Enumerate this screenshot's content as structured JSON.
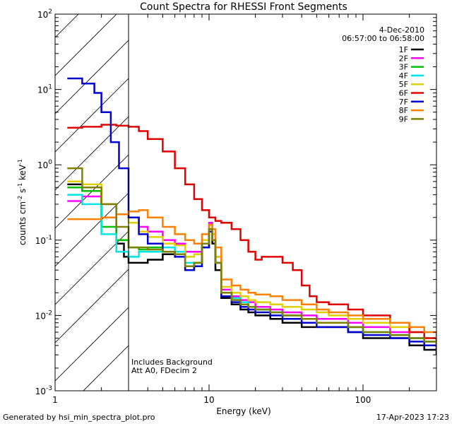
{
  "chart_data": {
    "type": "line",
    "title": "Count Spectra for RHESSI Front Segments",
    "xlabel": "Energy (keV)",
    "ylabel": "counts cm",
    "ylabel_parts": [
      "counts cm",
      "-2",
      " s",
      "-1",
      " keV",
      "-1"
    ],
    "xscale": "log",
    "yscale": "log",
    "xlim": [
      1,
      300
    ],
    "ylim": [
      0.001,
      100
    ],
    "x_ticks": [
      {
        "value": 1,
        "label": "1"
      },
      {
        "value": 10,
        "label": "10"
      },
      {
        "value": 100,
        "label": "100"
      }
    ],
    "y_ticks": [
      {
        "value": 0.001,
        "base": "10",
        "exp": "-3"
      },
      {
        "value": 0.01,
        "base": "10",
        "exp": "-2"
      },
      {
        "value": 0.1,
        "base": "10",
        "exp": "-1"
      },
      {
        "value": 1,
        "base": "10",
        "exp": "0"
      },
      {
        "value": 10,
        "base": "10",
        "exp": "1"
      },
      {
        "value": 100,
        "base": "10",
        "exp": "2"
      }
    ],
    "date": "4-Dec-2010",
    "time_range": "06:57:00 to 06:58:00",
    "hatched_region_x": [
      1,
      3
    ],
    "annotations": [
      "Includes Background",
      "Att A0, FDecim 2"
    ],
    "footer_left": "Generated by hsi_min_spectra_plot.pro",
    "footer_right": "17-Apr-2023 17:23",
    "series": [
      {
        "name": "1F",
        "color": "#000000",
        "points": [
          [
            1.2,
            0.55
          ],
          [
            1.5,
            0.45
          ],
          [
            2,
            0.2
          ],
          [
            2.5,
            0.09
          ],
          [
            2.8,
            0.06
          ],
          [
            3,
            0.05
          ],
          [
            3.5,
            0.05
          ],
          [
            4,
            0.055
          ],
          [
            5,
            0.065
          ],
          [
            6,
            0.07
          ],
          [
            7,
            0.04
          ],
          [
            8,
            0.05
          ],
          [
            9,
            0.09
          ],
          [
            10,
            0.13
          ],
          [
            10.5,
            0.09
          ],
          [
            11,
            0.04
          ],
          [
            12,
            0.017
          ],
          [
            14,
            0.014
          ],
          [
            16,
            0.012
          ],
          [
            18,
            0.011
          ],
          [
            20,
            0.01
          ],
          [
            25,
            0.009
          ],
          [
            30,
            0.008
          ],
          [
            40,
            0.007
          ],
          [
            50,
            0.007
          ],
          [
            60,
            0.007
          ],
          [
            80,
            0.006
          ],
          [
            100,
            0.005
          ],
          [
            150,
            0.005
          ],
          [
            200,
            0.004
          ],
          [
            250,
            0.0035
          ],
          [
            300,
            0.003
          ]
        ]
      },
      {
        "name": "2F",
        "color": "#ff00ff",
        "points": [
          [
            1.2,
            0.33
          ],
          [
            1.5,
            0.38
          ],
          [
            2,
            0.3
          ],
          [
            2.5,
            0.22
          ],
          [
            3,
            0.2
          ],
          [
            3.5,
            0.15
          ],
          [
            4,
            0.13
          ],
          [
            5,
            0.1
          ],
          [
            6,
            0.09
          ],
          [
            7,
            0.07
          ],
          [
            8,
            0.07
          ],
          [
            9,
            0.1
          ],
          [
            10,
            0.17
          ],
          [
            10.5,
            0.12
          ],
          [
            11,
            0.06
          ],
          [
            12,
            0.022
          ],
          [
            14,
            0.018
          ],
          [
            16,
            0.016
          ],
          [
            18,
            0.015
          ],
          [
            20,
            0.013
          ],
          [
            25,
            0.012
          ],
          [
            30,
            0.011
          ],
          [
            40,
            0.01
          ],
          [
            50,
            0.009
          ],
          [
            60,
            0.009
          ],
          [
            80,
            0.008
          ],
          [
            100,
            0.007
          ],
          [
            150,
            0.006
          ],
          [
            200,
            0.005
          ],
          [
            250,
            0.0045
          ],
          [
            300,
            0.004
          ]
        ]
      },
      {
        "name": "3F",
        "color": "#00c000",
        "points": [
          [
            1.2,
            0.5
          ],
          [
            1.5,
            0.45
          ],
          [
            2,
            0.15
          ],
          [
            2.5,
            0.1
          ],
          [
            3,
            0.08
          ],
          [
            3.5,
            0.075
          ],
          [
            4,
            0.08
          ],
          [
            5,
            0.07
          ],
          [
            6,
            0.065
          ],
          [
            7,
            0.04
          ],
          [
            8,
            0.05
          ],
          [
            9,
            0.08
          ],
          [
            10,
            0.14
          ],
          [
            10.5,
            0.1
          ],
          [
            11,
            0.05
          ],
          [
            12,
            0.02
          ],
          [
            14,
            0.016
          ],
          [
            16,
            0.014
          ],
          [
            18,
            0.013
          ],
          [
            20,
            0.012
          ],
          [
            25,
            0.011
          ],
          [
            30,
            0.01
          ],
          [
            40,
            0.009
          ],
          [
            50,
            0.008
          ],
          [
            60,
            0.008
          ],
          [
            80,
            0.007
          ],
          [
            100,
            0.006
          ],
          [
            150,
            0.0055
          ],
          [
            200,
            0.005
          ],
          [
            250,
            0.0045
          ],
          [
            300,
            0.004
          ]
        ]
      },
      {
        "name": "4F",
        "color": "#00e5e5",
        "points": [
          [
            1.2,
            0.4
          ],
          [
            1.5,
            0.3
          ],
          [
            2,
            0.12
          ],
          [
            2.5,
            0.07
          ],
          [
            3,
            0.06
          ],
          [
            3.5,
            0.07
          ],
          [
            4,
            0.07
          ],
          [
            5,
            0.08
          ],
          [
            6,
            0.07
          ],
          [
            7,
            0.05
          ],
          [
            8,
            0.05
          ],
          [
            9,
            0.09
          ],
          [
            10,
            0.14
          ],
          [
            10.5,
            0.1
          ],
          [
            11,
            0.05
          ],
          [
            12,
            0.02
          ],
          [
            14,
            0.017
          ],
          [
            16,
            0.015
          ],
          [
            18,
            0.013
          ],
          [
            20,
            0.012
          ],
          [
            25,
            0.011
          ],
          [
            30,
            0.01
          ],
          [
            40,
            0.009
          ],
          [
            50,
            0.008
          ],
          [
            60,
            0.008
          ],
          [
            80,
            0.007
          ],
          [
            100,
            0.006
          ],
          [
            150,
            0.0055
          ],
          [
            200,
            0.005
          ],
          [
            250,
            0.0045
          ],
          [
            300,
            0.004
          ]
        ]
      },
      {
        "name": "5F",
        "color": "#e0d000",
        "points": [
          [
            1.2,
            0.6
          ],
          [
            1.5,
            0.55
          ],
          [
            2,
            0.3
          ],
          [
            2.5,
            0.22
          ],
          [
            3,
            0.17
          ],
          [
            3.5,
            0.13
          ],
          [
            4,
            0.11
          ],
          [
            5,
            0.09
          ],
          [
            6,
            0.085
          ],
          [
            7,
            0.06
          ],
          [
            8,
            0.065
          ],
          [
            9,
            0.1
          ],
          [
            10,
            0.16
          ],
          [
            10.5,
            0.12
          ],
          [
            11,
            0.06
          ],
          [
            12,
            0.024
          ],
          [
            14,
            0.02
          ],
          [
            16,
            0.018
          ],
          [
            18,
            0.016
          ],
          [
            20,
            0.015
          ],
          [
            25,
            0.014
          ],
          [
            30,
            0.013
          ],
          [
            40,
            0.012
          ],
          [
            50,
            0.011
          ],
          [
            60,
            0.01
          ],
          [
            80,
            0.009
          ],
          [
            100,
            0.008
          ],
          [
            150,
            0.007
          ],
          [
            200,
            0.006
          ],
          [
            250,
            0.005
          ],
          [
            300,
            0.0045
          ]
        ]
      },
      {
        "name": "6F",
        "color": "#e00000",
        "points": [
          [
            1.2,
            3.1
          ],
          [
            1.5,
            3.2
          ],
          [
            2,
            3.4
          ],
          [
            2.5,
            3.3
          ],
          [
            3,
            3.2
          ],
          [
            3.5,
            2.8
          ],
          [
            4,
            2.2
          ],
          [
            5,
            1.5
          ],
          [
            6,
            0.9
          ],
          [
            7,
            0.55
          ],
          [
            8,
            0.35
          ],
          [
            9,
            0.25
          ],
          [
            10,
            0.2
          ],
          [
            11,
            0.18
          ],
          [
            12,
            0.17
          ],
          [
            14,
            0.14
          ],
          [
            16,
            0.1
          ],
          [
            18,
            0.07
          ],
          [
            20,
            0.055
          ],
          [
            22,
            0.06
          ],
          [
            25,
            0.06
          ],
          [
            30,
            0.05
          ],
          [
            35,
            0.04
          ],
          [
            40,
            0.025
          ],
          [
            45,
            0.018
          ],
          [
            50,
            0.015
          ],
          [
            60,
            0.014
          ],
          [
            70,
            0.014
          ],
          [
            80,
            0.012
          ],
          [
            100,
            0.01
          ],
          [
            150,
            0.008
          ],
          [
            200,
            0.006
          ],
          [
            250,
            0.005
          ],
          [
            300,
            0.004
          ]
        ]
      },
      {
        "name": "7F",
        "color": "#0000d0",
        "points": [
          [
            1.2,
            14
          ],
          [
            1.5,
            12
          ],
          [
            1.8,
            9
          ],
          [
            2,
            5
          ],
          [
            2.3,
            2
          ],
          [
            2.6,
            0.9
          ],
          [
            3,
            0.2
          ],
          [
            3.5,
            0.12
          ],
          [
            4,
            0.09
          ],
          [
            5,
            0.07
          ],
          [
            6,
            0.06
          ],
          [
            7,
            0.04
          ],
          [
            8,
            0.045
          ],
          [
            9,
            0.08
          ],
          [
            10,
            0.13
          ],
          [
            10.5,
            0.1
          ],
          [
            11,
            0.05
          ],
          [
            12,
            0.018
          ],
          [
            14,
            0.015
          ],
          [
            16,
            0.013
          ],
          [
            18,
            0.012
          ],
          [
            20,
            0.011
          ],
          [
            25,
            0.01
          ],
          [
            30,
            0.009
          ],
          [
            40,
            0.008
          ],
          [
            50,
            0.007
          ],
          [
            60,
            0.007
          ],
          [
            80,
            0.006
          ],
          [
            100,
            0.0055
          ],
          [
            150,
            0.005
          ],
          [
            200,
            0.0045
          ],
          [
            250,
            0.004
          ],
          [
            300,
            0.0035
          ]
        ]
      },
      {
        "name": "8F",
        "color": "#ff8000",
        "points": [
          [
            1.2,
            0.19
          ],
          [
            1.5,
            0.19
          ],
          [
            2,
            0.2
          ],
          [
            2.5,
            0.22
          ],
          [
            3,
            0.24
          ],
          [
            3.5,
            0.25
          ],
          [
            4,
            0.2
          ],
          [
            5,
            0.15
          ],
          [
            6,
            0.12
          ],
          [
            7,
            0.1
          ],
          [
            8,
            0.09
          ],
          [
            9,
            0.12
          ],
          [
            10,
            0.16
          ],
          [
            10.5,
            0.14
          ],
          [
            11,
            0.08
          ],
          [
            12,
            0.03
          ],
          [
            14,
            0.025
          ],
          [
            16,
            0.022
          ],
          [
            18,
            0.02
          ],
          [
            20,
            0.019
          ],
          [
            25,
            0.018
          ],
          [
            30,
            0.016
          ],
          [
            40,
            0.014
          ],
          [
            50,
            0.012
          ],
          [
            60,
            0.011
          ],
          [
            80,
            0.01
          ],
          [
            100,
            0.009
          ],
          [
            150,
            0.008
          ],
          [
            200,
            0.007
          ],
          [
            250,
            0.006
          ],
          [
            300,
            0.005
          ]
        ]
      },
      {
        "name": "9F",
        "color": "#808000",
        "points": [
          [
            1.2,
            0.9
          ],
          [
            1.5,
            0.5
          ],
          [
            2,
            0.3
          ],
          [
            2.5,
            0.15
          ],
          [
            3,
            0.08
          ],
          [
            3.5,
            0.08
          ],
          [
            4,
            0.075
          ],
          [
            5,
            0.07
          ],
          [
            6,
            0.065
          ],
          [
            7,
            0.045
          ],
          [
            8,
            0.05
          ],
          [
            9,
            0.09
          ],
          [
            10,
            0.14
          ],
          [
            10.5,
            0.1
          ],
          [
            11,
            0.05
          ],
          [
            12,
            0.02
          ],
          [
            14,
            0.016
          ],
          [
            16,
            0.014
          ],
          [
            18,
            0.013
          ],
          [
            20,
            0.012
          ],
          [
            25,
            0.011
          ],
          [
            30,
            0.01
          ],
          [
            40,
            0.009
          ],
          [
            50,
            0.008
          ],
          [
            60,
            0.008
          ],
          [
            80,
            0.007
          ],
          [
            100,
            0.006
          ],
          [
            150,
            0.0055
          ],
          [
            200,
            0.005
          ],
          [
            250,
            0.0045
          ],
          [
            300,
            0.004
          ]
        ]
      }
    ]
  }
}
